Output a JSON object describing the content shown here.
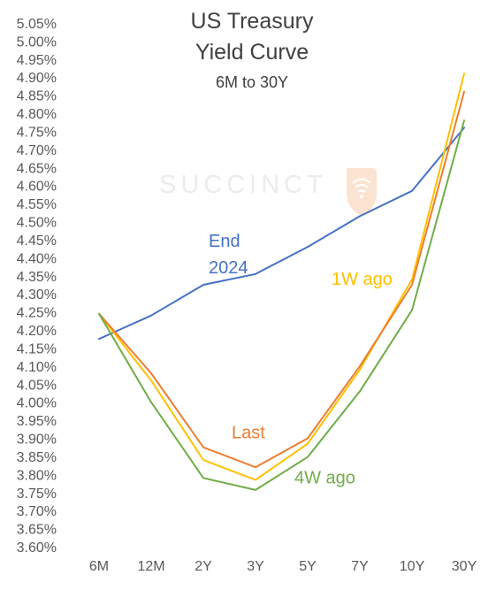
{
  "chart_data": {
    "type": "line",
    "title_lines": [
      "US Treasury",
      "Yield Curve"
    ],
    "subtitle": "6M to 30Y",
    "watermark": "SUCCINCT",
    "categories": [
      "6M",
      "12M",
      "2Y",
      "3Y",
      "5Y",
      "7Y",
      "10Y",
      "30Y"
    ],
    "ylim": [
      3.6,
      5.05
    ],
    "ytick_step": 0.05,
    "ytick_format": "2 decimals with %",
    "grid": false,
    "legend": "inline labels",
    "series": [
      {
        "label_lines": [
          "End",
          "2024"
        ],
        "color": "#4472C4",
        "values": [
          4.175,
          4.24,
          4.325,
          4.355,
          4.43,
          4.515,
          4.585,
          4.76
        ]
      },
      {
        "label_lines": [
          "1W ago"
        ],
        "color": "#FFC000",
        "values": [
          4.245,
          4.06,
          3.84,
          3.785,
          3.885,
          4.09,
          4.34,
          4.91
        ]
      },
      {
        "label_lines": [
          "Last"
        ],
        "color": "#ED7D31",
        "values": [
          4.245,
          4.08,
          3.875,
          3.82,
          3.9,
          4.1,
          4.325,
          4.86
        ]
      },
      {
        "label_lines": [
          "4W ago"
        ],
        "color": "#70AD47",
        "values": [
          4.245,
          4.0,
          3.79,
          3.757,
          3.848,
          4.03,
          4.255,
          4.78
        ]
      }
    ]
  }
}
